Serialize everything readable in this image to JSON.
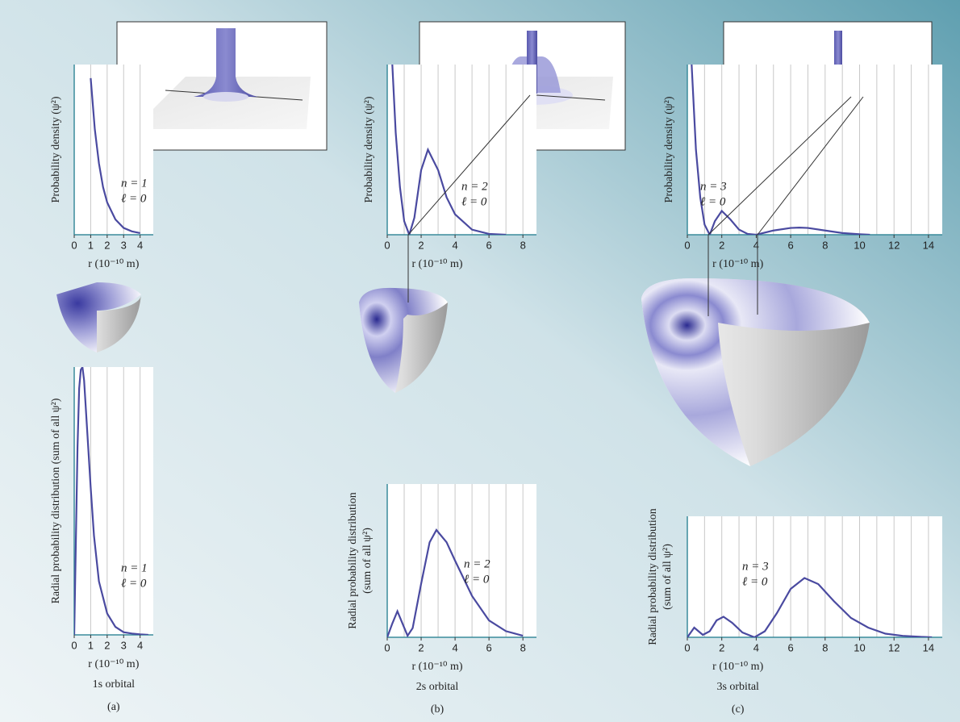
{
  "chart_data": [
    {
      "type": "line",
      "y_label": "Probability density (ψ²)",
      "x_label": "r (10⁻¹⁰ m)",
      "annotation": [
        "n = 1",
        "ℓ = 0"
      ],
      "xlim": [
        0,
        4.8
      ],
      "xticks": [
        0,
        1,
        2,
        3,
        4
      ],
      "xgrid": [
        1,
        2,
        3,
        4
      ],
      "ylim": [
        0,
        100
      ],
      "color": "#4a4aa0",
      "x": [
        1,
        1.25,
        1.5,
        1.75,
        2,
        2.5,
        3,
        3.5,
        4
      ],
      "values": [
        92,
        62,
        42,
        28,
        19,
        9,
        4,
        2,
        1
      ]
    },
    {
      "type": "line",
      "y_label": "Radial probability distribution (sum of all ψ²)",
      "x_label": "r (10⁻¹⁰ m)",
      "annotation": [
        "n = 1",
        "ℓ = 0"
      ],
      "caption": "1s orbital",
      "panel": "(a)",
      "xlim": [
        0,
        4.8
      ],
      "xticks": [
        0,
        1,
        2,
        3,
        4
      ],
      "xgrid": [
        1,
        2,
        3,
        4
      ],
      "ylim": [
        0,
        100
      ],
      "color": "#4a4aa0",
      "x": [
        0,
        0.1,
        0.2,
        0.3,
        0.4,
        0.5,
        0.6,
        0.8,
        1,
        1.2,
        1.5,
        2,
        2.5,
        3,
        3.5,
        4,
        4.5
      ],
      "values": [
        0,
        35,
        70,
        92,
        99,
        100,
        95,
        75,
        55,
        37,
        20,
        8,
        3,
        1,
        0.5,
        0.2,
        0
      ]
    },
    {
      "type": "line",
      "y_label": "Probability density (ψ²)",
      "x_label": "r (10⁻¹⁰ m)",
      "annotation": [
        "n = 2",
        "ℓ = 0"
      ],
      "xlim": [
        0,
        8.8
      ],
      "xticks": [
        0,
        2,
        4,
        6,
        8
      ],
      "xgrid": [
        1,
        2,
        3,
        4,
        5,
        6,
        7,
        8
      ],
      "ylim": [
        0,
        100
      ],
      "color": "#4a4aa0",
      "x": [
        0.3,
        0.5,
        0.75,
        1,
        1.3,
        1.6,
        2,
        2.4,
        3,
        3.5,
        4,
        5,
        6,
        7
      ],
      "values": [
        100,
        60,
        28,
        8,
        0,
        10,
        38,
        50,
        38,
        22,
        12,
        3,
        0.5,
        0
      ]
    },
    {
      "type": "line",
      "y_label": [
        "Radial probability distribution",
        "(sum of all ψ²)"
      ],
      "x_label": "r (10⁻¹⁰ m)",
      "annotation": [
        "n = 2",
        "ℓ = 0"
      ],
      "caption": "2s orbital",
      "panel": "(b)",
      "xlim": [
        0,
        8.8
      ],
      "xticks": [
        0,
        2,
        4,
        6,
        8
      ],
      "xgrid": [
        1,
        2,
        3,
        4,
        5,
        6,
        7,
        8
      ],
      "ylim": [
        0,
        100
      ],
      "color": "#4a4aa0",
      "x": [
        0,
        0.3,
        0.6,
        0.9,
        1.2,
        1.5,
        2,
        2.5,
        2.9,
        3.5,
        4,
        5,
        6,
        7,
        8
      ],
      "values": [
        0,
        9,
        17,
        9,
        1,
        6,
        35,
        62,
        70,
        62,
        50,
        27,
        11,
        4,
        1
      ]
    },
    {
      "type": "line",
      "y_label": "Probability density (ψ²)",
      "x_label": "r (10⁻¹⁰ m)",
      "annotation": [
        "n = 3",
        "ℓ = 0"
      ],
      "xlim": [
        0,
        14.8
      ],
      "xticks": [
        0,
        2,
        4,
        6,
        8,
        10,
        12,
        14
      ],
      "xgrid": [
        1,
        2,
        3,
        4,
        5,
        6,
        7,
        8,
        9,
        10,
        11,
        12,
        13,
        14
      ],
      "ylim": [
        0,
        100
      ],
      "color": "#4a4aa0",
      "x": [
        0.25,
        0.5,
        0.75,
        1,
        1.3,
        1.6,
        2,
        2.5,
        3,
        3.5,
        4,
        5,
        6,
        6.5,
        7,
        8,
        9,
        10,
        10.6
      ],
      "values": [
        100,
        50,
        22,
        6,
        0,
        8,
        14,
        9,
        3,
        0.5,
        0,
        2.5,
        4,
        4.2,
        4,
        2.5,
        1,
        0.3,
        0
      ]
    },
    {
      "type": "line",
      "y_label": [
        "Radial probability distribution",
        "(sum of all ψ²)"
      ],
      "x_label": "r (10⁻¹⁰ m)",
      "annotation": [
        "n = 3",
        "ℓ = 0"
      ],
      "caption": "3s orbital",
      "panel": "(c)",
      "xlim": [
        0,
        14.8
      ],
      "xticks": [
        0,
        2,
        4,
        6,
        8,
        10,
        12,
        14
      ],
      "xgrid": [
        1,
        2,
        3,
        4,
        5,
        6,
        7,
        8,
        9,
        10,
        11,
        12,
        13,
        14
      ],
      "ylim": [
        0,
        100
      ],
      "color": "#4a4aa0",
      "x": [
        0,
        0.4,
        0.9,
        1.3,
        1.7,
        2.1,
        2.6,
        3.2,
        3.9,
        4.5,
        5.2,
        6,
        6.8,
        7.6,
        8.5,
        9.5,
        10.5,
        11.5,
        12.5,
        13.5,
        14.2
      ],
      "values": [
        0,
        8,
        2,
        5,
        14,
        17,
        12,
        4,
        0,
        5,
        20,
        40,
        49,
        44,
        30,
        16,
        8,
        3,
        1.2,
        0.4,
        0
      ]
    }
  ]
}
